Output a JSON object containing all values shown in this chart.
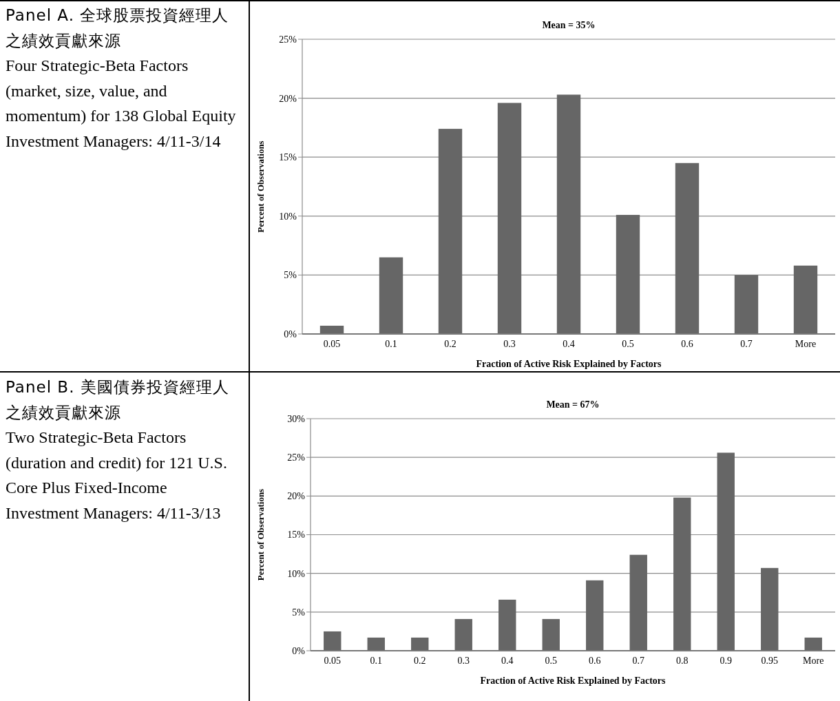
{
  "chart_data": [
    {
      "type": "bar",
      "title": "Mean = 35%",
      "xlabel": "Fraction of Active Risk Explained by Factors",
      "ylabel": "Percent of Observations",
      "annotations": [
        "Panel A. 全球股票投資經理人之績效貢獻來源",
        "Four Strategic-Beta Factors (market, size, value, and momentum) for 138 Global Equity Investment Managers: 4/11-3/14"
      ],
      "categories": [
        "0.05",
        "0.1",
        "0.2",
        "0.3",
        "0.4",
        "0.5",
        "0.6",
        "0.7",
        "More"
      ],
      "values": [
        0.7,
        6.5,
        17.4,
        19.6,
        20.3,
        10.1,
        14.5,
        5.0,
        5.8
      ],
      "color": "#666666",
      "ylim": [
        0,
        25
      ],
      "yticks": [
        {
          "value": 0,
          "label": "0%"
        },
        {
          "value": 5,
          "label": "5%"
        },
        {
          "value": 10,
          "label": "10%"
        },
        {
          "value": 15,
          "label": "15%"
        },
        {
          "value": 20,
          "label": "20%"
        },
        {
          "value": 25,
          "label": "25%"
        }
      ],
      "grid": "y"
    },
    {
      "type": "bar",
      "title": "Mean = 67%",
      "xlabel": "Fraction of Active Risk Explained by Factors",
      "ylabel": "Percent of Observations",
      "annotations": [
        "Panel B. 美國債券投資經理人之績效貢獻來源",
        "Two Strategic-Beta Factors (duration and credit) for 121 U.S. Core Plus Fixed-Income Investment Managers: 4/11-3/13"
      ],
      "categories": [
        "0.05",
        "0.1",
        "0.2",
        "0.3",
        "0.4",
        "0.5",
        "0.6",
        "0.7",
        "0.8",
        "0.9",
        "0.95",
        "More"
      ],
      "values": [
        2.5,
        1.7,
        1.7,
        4.1,
        6.6,
        4.1,
        9.1,
        12.4,
        19.8,
        25.6,
        10.7,
        1.7
      ],
      "color": "#666666",
      "ylim": [
        0,
        30
      ],
      "yticks": [
        {
          "value": 0,
          "label": "0%"
        },
        {
          "value": 5,
          "label": "5%"
        },
        {
          "value": 10,
          "label": "10%"
        },
        {
          "value": 15,
          "label": "15%"
        },
        {
          "value": 20,
          "label": "20%"
        },
        {
          "value": 25,
          "label": "25%"
        },
        {
          "value": 30,
          "label": "30%"
        }
      ],
      "grid": "y"
    }
  ]
}
